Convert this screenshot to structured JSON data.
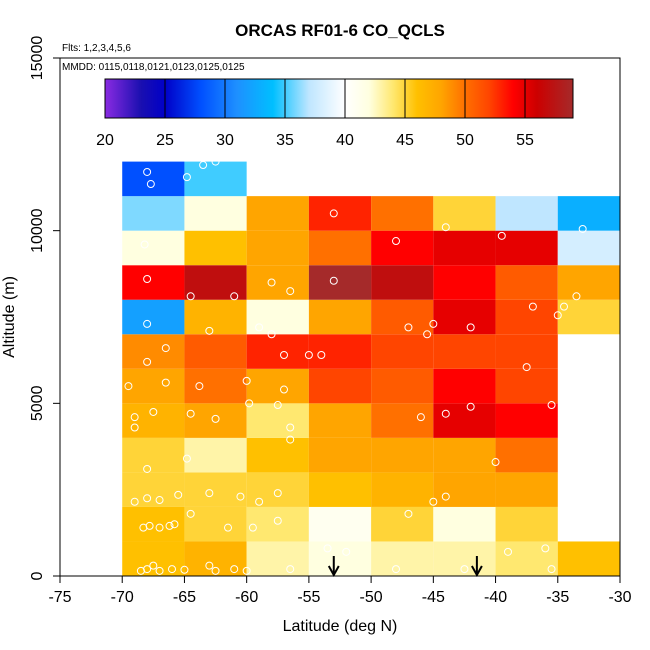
{
  "chart_data": {
    "type": "heatmap",
    "title": "ORCAS RF01-6 CO_QCLS",
    "flights_note": "Flts: 1,2,3,4,5,6",
    "dates_note": "MMDD: 0115,0118,0121,0123,0125,0125",
    "xlabel": "Latitude (deg N)",
    "ylabel": "Altitude (m)",
    "xlim": [
      -75,
      -30
    ],
    "ylim": [
      0,
      15000
    ],
    "x_ticks": [
      -75,
      -70,
      -65,
      -60,
      -55,
      -50,
      -45,
      -40,
      -35,
      -30
    ],
    "y_ticks": [
      0,
      5000,
      10000,
      15000
    ],
    "x_bins": [
      -70,
      -65,
      -60,
      -55,
      -50,
      -45,
      -40,
      -35,
      -30
    ],
    "alt_bins": [
      0,
      1000,
      2000,
      3000,
      4000,
      5000,
      6000,
      7000,
      8000,
      9000,
      10000,
      11000,
      12000
    ],
    "values": [
      [
        46,
        47,
        43,
        42,
        43,
        43,
        44,
        46,
        null
      ],
      [
        46,
        45,
        44,
        41,
        45,
        42,
        45,
        null,
        null
      ],
      [
        45,
        45,
        45,
        46,
        47,
        48,
        48,
        null,
        null
      ],
      [
        45,
        43,
        46,
        48,
        48,
        48,
        50,
        null,
        null
      ],
      [
        47,
        48,
        44,
        48,
        50,
        55,
        54,
        null,
        null
      ],
      [
        48,
        50,
        48,
        52,
        51,
        54,
        52,
        null,
        null
      ],
      [
        49,
        51,
        53,
        53,
        52,
        52,
        52,
        null,
        null
      ],
      [
        32,
        47,
        42,
        48,
        51,
        55,
        52,
        45,
        null
      ],
      [
        54,
        57,
        48,
        59,
        57,
        54,
        51,
        48,
        null
      ],
      [
        42,
        46,
        48,
        50,
        54,
        55,
        55,
        38,
        null
      ],
      [
        36,
        42,
        48,
        53,
        50,
        45,
        37,
        33,
        null
      ],
      [
        28,
        35,
        null,
        null,
        null,
        null,
        null,
        null,
        null
      ]
    ],
    "colorbar": {
      "min": 20,
      "max": 59,
      "ticks": [
        20,
        25,
        30,
        35,
        40,
        45,
        50,
        55
      ],
      "gradient_stops": [
        [
          20,
          "#8a2be2"
        ],
        [
          23,
          "#1a0fb0"
        ],
        [
          25,
          "#0000c8"
        ],
        [
          28,
          "#0050ff"
        ],
        [
          31,
          "#1e90ff"
        ],
        [
          34,
          "#00bfff"
        ],
        [
          37,
          "#bfe6ff"
        ],
        [
          40,
          "#ffffff"
        ],
        [
          42,
          "#ffffe0"
        ],
        [
          44,
          "#ffe870"
        ],
        [
          46,
          "#ffc000"
        ],
        [
          48,
          "#ffa500"
        ],
        [
          50,
          "#ff7000"
        ],
        [
          52,
          "#ff4500"
        ],
        [
          54,
          "#ff0000"
        ],
        [
          56,
          "#cc0000"
        ],
        [
          59,
          "#a52a2a"
        ]
      ]
    },
    "sample_points": [
      [
        -68.5,
        150
      ],
      [
        -68,
        200
      ],
      [
        -67.5,
        300
      ],
      [
        -67,
        150
      ],
      [
        -66,
        200
      ],
      [
        -65,
        180
      ],
      [
        -63,
        300
      ],
      [
        -62.5,
        150
      ],
      [
        -61,
        200
      ],
      [
        -60,
        150
      ],
      [
        -68.3,
        1400
      ],
      [
        -67.8,
        1450
      ],
      [
        -67,
        1400
      ],
      [
        -66.2,
        1450
      ],
      [
        -65.8,
        1500
      ],
      [
        -64.5,
        1800
      ],
      [
        -61.5,
        1400
      ],
      [
        -59.5,
        1400
      ],
      [
        -57.5,
        1600
      ],
      [
        -69,
        2150
      ],
      [
        -68,
        2250
      ],
      [
        -67,
        2200
      ],
      [
        -65.5,
        2350
      ],
      [
        -63,
        2400
      ],
      [
        -60.5,
        2300
      ],
      [
        -59,
        2150
      ],
      [
        -57.5,
        2400
      ],
      [
        -68,
        3100
      ],
      [
        -64.8,
        3400
      ],
      [
        -56.5,
        3950
      ],
      [
        -69,
        4300
      ],
      [
        -69,
        4600
      ],
      [
        -67.5,
        4750
      ],
      [
        -64.5,
        4700
      ],
      [
        -62.5,
        4550
      ],
      [
        -59.8,
        5000
      ],
      [
        -57.5,
        4950
      ],
      [
        -56.5,
        4300
      ],
      [
        -69.5,
        5500
      ],
      [
        -66.5,
        5600
      ],
      [
        -63.8,
        5500
      ],
      [
        -60,
        5650
      ],
      [
        -57,
        5400
      ],
      [
        -68,
        6200
      ],
      [
        -66.5,
        6600
      ],
      [
        -63,
        7100
      ],
      [
        -59,
        7200
      ],
      [
        -58,
        7000
      ],
      [
        -57,
        6400
      ],
      [
        -55,
        6400
      ],
      [
        -68,
        7300
      ],
      [
        -64.5,
        8100
      ],
      [
        -61,
        8100
      ],
      [
        -58,
        8500
      ],
      [
        -56.5,
        8250
      ],
      [
        -53,
        8550
      ],
      [
        -68,
        8600
      ],
      [
        -68.2,
        9600
      ],
      [
        -62.5,
        12000
      ],
      [
        -63.5,
        11900
      ],
      [
        -64.8,
        11550
      ],
      [
        -67.7,
        11350
      ],
      [
        -68,
        11700
      ],
      [
        -53,
        10500
      ],
      [
        -48,
        9700
      ],
      [
        -44,
        10100
      ],
      [
        -39.5,
        9850
      ],
      [
        -33,
        10050
      ],
      [
        -47,
        7200
      ],
      [
        -45.5,
        7000
      ],
      [
        -45,
        7300
      ],
      [
        -42,
        7200
      ],
      [
        -37,
        7800
      ],
      [
        -35,
        7550
      ],
      [
        -34.5,
        7800
      ],
      [
        -33.5,
        8100
      ],
      [
        -37.5,
        6050
      ],
      [
        -54,
        6400
      ],
      [
        -46,
        4600
      ],
      [
        -44,
        4700
      ],
      [
        -42,
        4900
      ],
      [
        -35.5,
        4950
      ],
      [
        -40,
        3300
      ],
      [
        -45,
        2150
      ],
      [
        -44,
        2300
      ],
      [
        -47,
        1800
      ],
      [
        -53.5,
        800
      ],
      [
        -52,
        700
      ],
      [
        -39,
        700
      ],
      [
        -36,
        800
      ],
      [
        -35.5,
        200
      ],
      [
        -42.5,
        200
      ],
      [
        -48,
        200
      ],
      [
        -56.5,
        200
      ]
    ],
    "arrows_latitude": [
      -53,
      -41.5
    ]
  }
}
